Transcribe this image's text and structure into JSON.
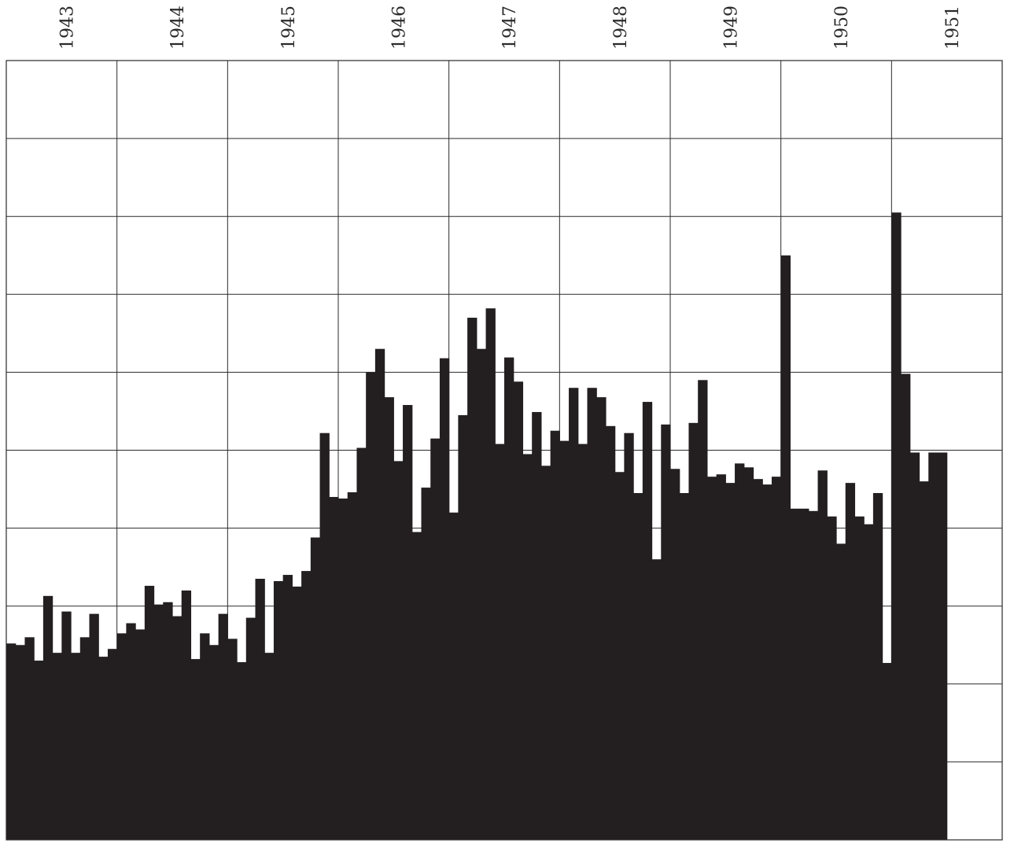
{
  "chart_data": {
    "type": "bar",
    "title": "",
    "xlabel": "",
    "ylabel": "",
    "x_tick_labels": [
      "1943",
      "1944",
      "1945",
      "1946",
      "1947",
      "1948",
      "1949",
      "1950",
      "1951"
    ],
    "x_range": [
      1943,
      1952
    ],
    "y_range": [
      0,
      10
    ],
    "grid": true,
    "legend": "none",
    "bar_color": "#231f20",
    "grid_color": "#2a2a2a",
    "background": "#ffffff",
    "values": [
      2.52,
      2.5,
      2.6,
      2.3,
      3.13,
      2.4,
      2.93,
      2.4,
      2.6,
      2.9,
      2.35,
      2.45,
      2.65,
      2.78,
      2.7,
      3.26,
      3.02,
      3.05,
      2.87,
      3.2,
      2.32,
      2.65,
      2.5,
      2.9,
      2.58,
      2.28,
      2.85,
      3.35,
      2.4,
      3.32,
      3.4,
      3.25,
      3.45,
      3.88,
      5.22,
      4.4,
      4.38,
      4.46,
      5.03,
      6.0,
      6.3,
      5.68,
      4.86,
      5.58,
      3.95,
      4.52,
      5.15,
      6.18,
      4.2,
      5.45,
      6.7,
      6.3,
      6.82,
      5.08,
      6.19,
      5.88,
      4.95,
      5.49,
      4.8,
      5.25,
      5.12,
      5.8,
      5.08,
      5.8,
      5.68,
      5.31,
      4.72,
      5.22,
      4.45,
      5.62,
      3.6,
      5.33,
      4.76,
      4.45,
      5.35,
      5.9,
      4.66,
      4.69,
      4.58,
      4.83,
      4.78,
      4.63,
      4.56,
      4.66,
      7.5,
      4.25,
      4.25,
      4.22,
      4.74,
      4.15,
      3.8,
      4.58,
      4.15,
      4.05,
      4.45,
      2.27,
      8.05,
      5.98,
      4.97,
      4.6,
      4.97,
      4.97
    ]
  }
}
